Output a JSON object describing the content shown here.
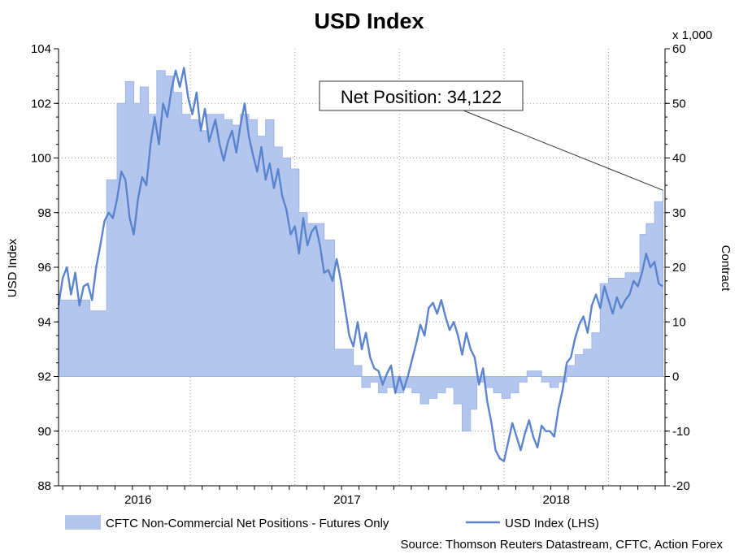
{
  "chart_data": {
    "type": "area",
    "title": "USD Index",
    "ylabel": "USD Index",
    "y2label": "Contract",
    "y2_unit_note": "x 1,000",
    "ylim": [
      88,
      104
    ],
    "y2lim": [
      -20,
      60
    ],
    "y_ticks": [
      "88",
      "90",
      "92",
      "94",
      "96",
      "98",
      "100",
      "102",
      "104"
    ],
    "y2_ticks": [
      "-20",
      "-10",
      "0",
      "10",
      "20",
      "30",
      "40",
      "50",
      "60"
    ],
    "x_ticks": [
      {
        "label": "2016",
        "t": 2016.0
      },
      {
        "label": "2017",
        "t": 2017.0
      },
      {
        "label": "2018",
        "t": 2018.0
      }
    ],
    "xlim": [
      2015.65,
      2018.55
    ],
    "grid": true,
    "annotation": {
      "text": "Net Position: 34,122",
      "t": 2018.54,
      "value": 34.1,
      "axis": "y2"
    },
    "source": "Source: Thomson Reuters Datastream, CFTC, Action Forex",
    "series": [
      {
        "name": "CFTC Non-Commercial Net Positions - Futures Only",
        "kind": "area",
        "axis": "y2",
        "color": "#b3c6ee",
        "edge_color": "#9fb5e6",
        "points": [
          [
            2015.65,
            14
          ],
          [
            2015.78,
            14
          ],
          [
            2015.8,
            12
          ],
          [
            2015.85,
            12
          ],
          [
            2015.88,
            36
          ],
          [
            2015.93,
            50
          ],
          [
            2015.97,
            54
          ],
          [
            2016.01,
            50
          ],
          [
            2016.04,
            53
          ],
          [
            2016.08,
            48
          ],
          [
            2016.12,
            56
          ],
          [
            2016.16,
            55
          ],
          [
            2016.2,
            52
          ],
          [
            2016.24,
            48
          ],
          [
            2016.28,
            47
          ],
          [
            2016.32,
            45
          ],
          [
            2016.36,
            48
          ],
          [
            2016.4,
            48
          ],
          [
            2016.44,
            47
          ],
          [
            2016.48,
            46
          ],
          [
            2016.52,
            48
          ],
          [
            2016.56,
            47
          ],
          [
            2016.6,
            44
          ],
          [
            2016.64,
            47
          ],
          [
            2016.68,
            42
          ],
          [
            2016.72,
            40
          ],
          [
            2016.76,
            38
          ],
          [
            2016.8,
            30
          ],
          [
            2016.84,
            28
          ],
          [
            2016.88,
            28
          ],
          [
            2016.92,
            25
          ],
          [
            2016.95,
            25
          ],
          [
            2016.97,
            5
          ],
          [
            2017.02,
            5
          ],
          [
            2017.06,
            2
          ],
          [
            2017.1,
            -2
          ],
          [
            2017.14,
            -1
          ],
          [
            2017.18,
            -3
          ],
          [
            2017.22,
            -2
          ],
          [
            2017.26,
            -3
          ],
          [
            2017.3,
            -2
          ],
          [
            2017.34,
            -3
          ],
          [
            2017.38,
            -5
          ],
          [
            2017.42,
            -4
          ],
          [
            2017.46,
            -3
          ],
          [
            2017.5,
            -2
          ],
          [
            2017.54,
            -5
          ],
          [
            2017.58,
            -10
          ],
          [
            2017.62,
            -6
          ],
          [
            2017.65,
            -1
          ],
          [
            2017.69,
            -2
          ],
          [
            2017.73,
            -3
          ],
          [
            2017.77,
            -4
          ],
          [
            2017.81,
            -3
          ],
          [
            2017.85,
            -1
          ],
          [
            2017.89,
            1
          ],
          [
            2017.93,
            1
          ],
          [
            2017.96,
            -1
          ],
          [
            2018.0,
            -2
          ],
          [
            2018.04,
            -1
          ],
          [
            2018.08,
            2
          ],
          [
            2018.12,
            4
          ],
          [
            2018.16,
            5
          ],
          [
            2018.2,
            8
          ],
          [
            2018.24,
            17
          ],
          [
            2018.28,
            18
          ],
          [
            2018.32,
            18
          ],
          [
            2018.36,
            19
          ],
          [
            2018.4,
            19
          ],
          [
            2018.43,
            26
          ],
          [
            2018.46,
            28
          ],
          [
            2018.5,
            32
          ],
          [
            2018.54,
            34.1
          ]
        ]
      },
      {
        "name": "USD Index (LHS)",
        "kind": "line",
        "axis": "y",
        "color": "#5b84cf",
        "points": [
          [
            2015.65,
            94.6
          ],
          [
            2015.67,
            95.6
          ],
          [
            2015.69,
            96.0
          ],
          [
            2015.71,
            95.0
          ],
          [
            2015.73,
            95.8
          ],
          [
            2015.75,
            94.6
          ],
          [
            2015.77,
            95.3
          ],
          [
            2015.79,
            95.4
          ],
          [
            2015.81,
            94.8
          ],
          [
            2015.83,
            96.0
          ],
          [
            2015.85,
            96.8
          ],
          [
            2015.87,
            97.7
          ],
          [
            2015.89,
            98.0
          ],
          [
            2015.91,
            97.8
          ],
          [
            2015.93,
            98.5
          ],
          [
            2015.95,
            99.5
          ],
          [
            2015.97,
            99.2
          ],
          [
            2015.99,
            97.8
          ],
          [
            2016.01,
            97.2
          ],
          [
            2016.03,
            98.5
          ],
          [
            2016.05,
            99.3
          ],
          [
            2016.07,
            99.0
          ],
          [
            2016.09,
            100.5
          ],
          [
            2016.11,
            101.5
          ],
          [
            2016.13,
            100.5
          ],
          [
            2016.15,
            102.0
          ],
          [
            2016.17,
            101.5
          ],
          [
            2016.19,
            102.5
          ],
          [
            2016.21,
            103.2
          ],
          [
            2016.23,
            102.6
          ],
          [
            2016.25,
            103.3
          ],
          [
            2016.27,
            102.2
          ],
          [
            2016.29,
            101.6
          ],
          [
            2016.31,
            102.4
          ],
          [
            2016.33,
            101.0
          ],
          [
            2016.35,
            101.8
          ],
          [
            2016.37,
            100.6
          ],
          [
            2016.4,
            101.4
          ],
          [
            2016.42,
            100.5
          ],
          [
            2016.44,
            99.9
          ],
          [
            2016.46,
            100.6
          ],
          [
            2016.48,
            101.0
          ],
          [
            2016.5,
            100.2
          ],
          [
            2016.52,
            101.2
          ],
          [
            2016.54,
            102.0
          ],
          [
            2016.56,
            100.8
          ],
          [
            2016.58,
            100.1
          ],
          [
            2016.6,
            99.5
          ],
          [
            2016.62,
            100.4
          ],
          [
            2016.64,
            99.2
          ],
          [
            2016.66,
            99.8
          ],
          [
            2016.68,
            98.9
          ],
          [
            2016.7,
            99.6
          ],
          [
            2016.72,
            98.6
          ],
          [
            2016.74,
            98.1
          ],
          [
            2016.76,
            97.2
          ],
          [
            2016.78,
            97.5
          ],
          [
            2016.8,
            96.5
          ],
          [
            2016.82,
            97.8
          ],
          [
            2016.84,
            96.8
          ],
          [
            2016.86,
            97.3
          ],
          [
            2016.88,
            97.5
          ],
          [
            2016.9,
            96.8
          ],
          [
            2016.92,
            95.8
          ],
          [
            2016.94,
            95.9
          ],
          [
            2016.96,
            95.5
          ],
          [
            2016.98,
            96.3
          ],
          [
            2017.0,
            95.5
          ],
          [
            2017.02,
            94.5
          ],
          [
            2017.04,
            93.5
          ],
          [
            2017.06,
            93.1
          ],
          [
            2017.08,
            94.0
          ],
          [
            2017.1,
            93.0
          ],
          [
            2017.12,
            93.6
          ],
          [
            2017.14,
            92.7
          ],
          [
            2017.16,
            92.3
          ],
          [
            2017.18,
            92.2
          ],
          [
            2017.2,
            91.7
          ],
          [
            2017.22,
            92.1
          ],
          [
            2017.24,
            92.4
          ],
          [
            2017.26,
            91.4
          ],
          [
            2017.28,
            92.0
          ],
          [
            2017.3,
            91.5
          ],
          [
            2017.32,
            92.0
          ],
          [
            2017.34,
            92.6
          ],
          [
            2017.36,
            93.2
          ],
          [
            2017.38,
            93.9
          ],
          [
            2017.4,
            93.5
          ],
          [
            2017.42,
            94.5
          ],
          [
            2017.44,
            94.7
          ],
          [
            2017.46,
            94.3
          ],
          [
            2017.48,
            94.8
          ],
          [
            2017.5,
            94.2
          ],
          [
            2017.52,
            93.7
          ],
          [
            2017.54,
            94.0
          ],
          [
            2017.56,
            93.5
          ],
          [
            2017.58,
            92.8
          ],
          [
            2017.6,
            93.6
          ],
          [
            2017.62,
            93.0
          ],
          [
            2017.64,
            92.7
          ],
          [
            2017.66,
            91.7
          ],
          [
            2017.68,
            92.3
          ],
          [
            2017.7,
            91.1
          ],
          [
            2017.72,
            90.3
          ],
          [
            2017.74,
            89.3
          ],
          [
            2017.76,
            89.0
          ],
          [
            2017.78,
            88.9
          ],
          [
            2017.8,
            89.6
          ],
          [
            2017.82,
            90.3
          ],
          [
            2017.84,
            89.8
          ],
          [
            2017.86,
            89.3
          ],
          [
            2017.88,
            89.9
          ],
          [
            2017.9,
            90.4
          ],
          [
            2017.92,
            89.8
          ],
          [
            2017.94,
            89.4
          ],
          [
            2017.96,
            90.2
          ],
          [
            2017.98,
            90.0
          ],
          [
            2018.0,
            90.0
          ],
          [
            2018.02,
            89.8
          ],
          [
            2018.04,
            90.8
          ],
          [
            2018.06,
            91.5
          ],
          [
            2018.08,
            92.5
          ],
          [
            2018.1,
            92.7
          ],
          [
            2018.12,
            93.4
          ],
          [
            2018.14,
            93.9
          ],
          [
            2018.16,
            94.2
          ],
          [
            2018.18,
            93.6
          ],
          [
            2018.2,
            94.6
          ],
          [
            2018.22,
            95.0
          ],
          [
            2018.24,
            94.5
          ],
          [
            2018.26,
            95.3
          ],
          [
            2018.28,
            94.8
          ],
          [
            2018.3,
            94.3
          ],
          [
            2018.32,
            94.9
          ],
          [
            2018.34,
            94.5
          ],
          [
            2018.36,
            94.8
          ],
          [
            2018.38,
            95.0
          ],
          [
            2018.4,
            95.5
          ],
          [
            2018.42,
            95.3
          ],
          [
            2018.44,
            95.8
          ],
          [
            2018.46,
            96.5
          ],
          [
            2018.48,
            96.0
          ],
          [
            2018.5,
            96.2
          ],
          [
            2018.52,
            95.4
          ],
          [
            2018.54,
            95.3
          ]
        ]
      }
    ]
  }
}
